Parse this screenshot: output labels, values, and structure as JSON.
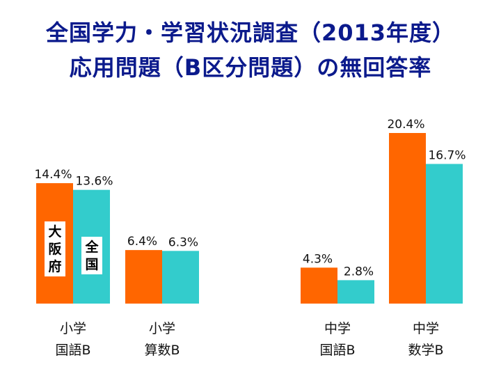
{
  "title": {
    "line1": "全国学力・学習状況調査（2013年度）",
    "line2": "応用問題（B区分問題）の無回答率"
  },
  "colors": {
    "osaka": "#ff6600",
    "national": "#33cccc",
    "title": "#0b1a8c"
  },
  "chart_data": {
    "type": "bar",
    "title": "全国学力・学習状況調査（2013年度） 応用問題（B区分問題）の無回答率",
    "categories": [
      [
        "小学",
        "国語B"
      ],
      [
        "小学",
        "算数B"
      ],
      [
        "中学",
        "国語B"
      ],
      [
        "中学",
        "数学B"
      ]
    ],
    "series": [
      {
        "name": "大阪府",
        "values": [
          14.4,
          6.4,
          4.3,
          20.4
        ],
        "labels": [
          "14.4%",
          "6.4%",
          "4.3%",
          "20.4%"
        ]
      },
      {
        "name": "全国",
        "values": [
          13.6,
          6.3,
          2.8,
          16.7
        ],
        "labels": [
          "13.6%",
          "6.3%",
          "2.8%",
          "16.7%"
        ]
      }
    ],
    "ylim": [
      0,
      20.4
    ],
    "grid": false,
    "legend": "inside-first-bars"
  }
}
